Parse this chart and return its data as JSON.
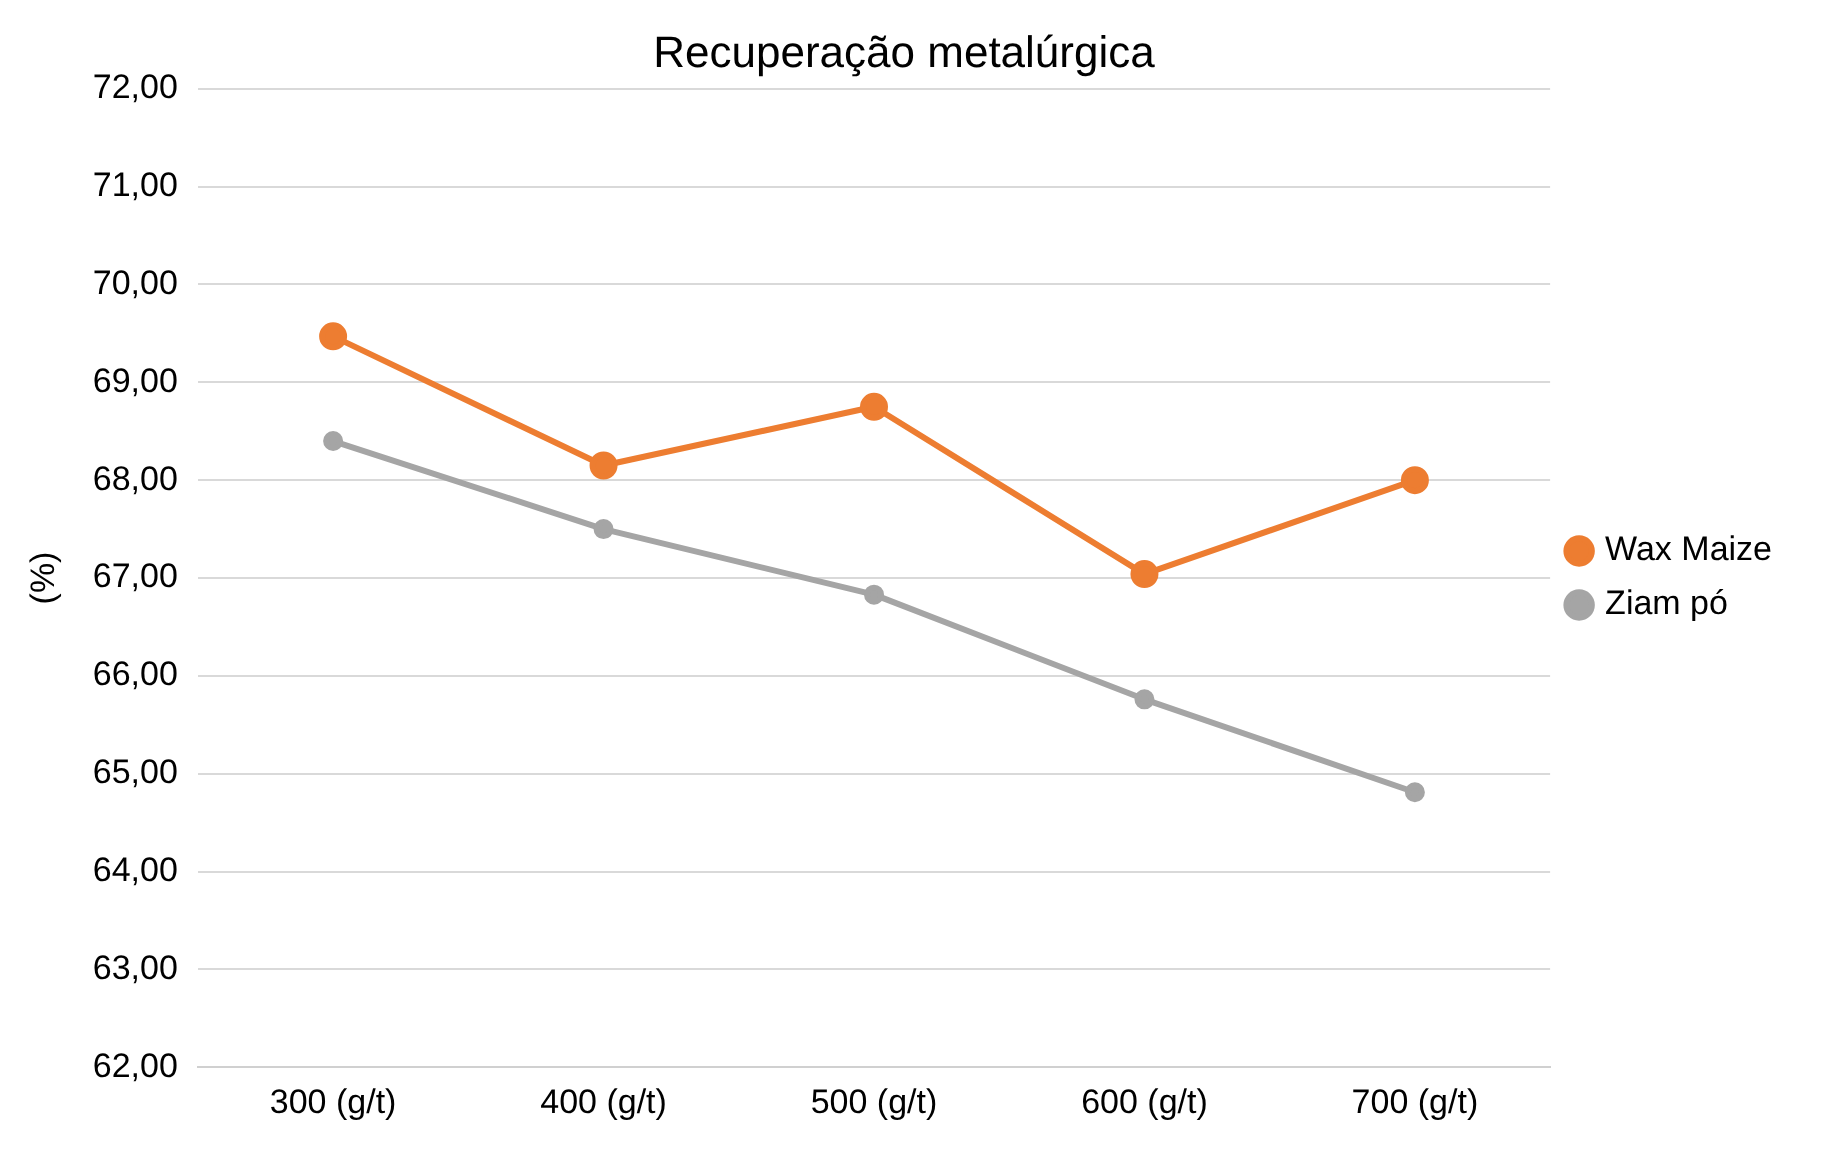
{
  "chart_data": {
    "type": "line",
    "title": "Recuperação metalúrgica",
    "ylabel": "(%)",
    "categories": [
      "300 (g/t)",
      "400 (g/t)",
      "500 (g/t)",
      "600 (g/t)",
      "700 (g/t)"
    ],
    "series": [
      {
        "name": "Wax Maize",
        "color": "#ed7d31",
        "values": [
          69.47,
          68.15,
          68.75,
          67.04,
          68.0
        ]
      },
      {
        "name": "Ziam pó",
        "color": "#a5a5a5",
        "values": [
          68.4,
          67.5,
          66.83,
          65.76,
          64.81
        ]
      }
    ],
    "ylim": [
      62,
      72
    ],
    "yticks": [
      {
        "value": 62,
        "label": "62,00"
      },
      {
        "value": 63,
        "label": "63,00"
      },
      {
        "value": 64,
        "label": "64,00"
      },
      {
        "value": 65,
        "label": "65,00"
      },
      {
        "value": 66,
        "label": "66,00"
      },
      {
        "value": 67,
        "label": "67,00"
      },
      {
        "value": 68,
        "label": "68,00"
      },
      {
        "value": 69,
        "label": "69,00"
      },
      {
        "value": 70,
        "label": "70,00"
      },
      {
        "value": 71,
        "label": "71,00"
      },
      {
        "value": 72,
        "label": "72,00"
      }
    ],
    "grid": "y",
    "legend": "right",
    "marker": "circle",
    "line_style": "solid"
  }
}
